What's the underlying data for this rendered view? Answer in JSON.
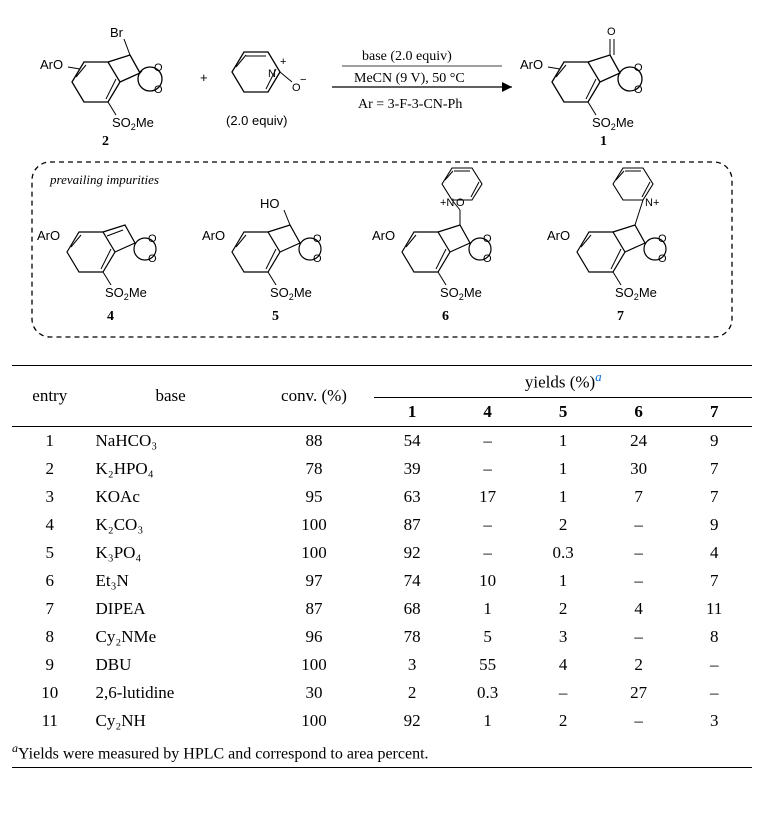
{
  "scheme": {
    "reaction": {
      "reactant_label": "2",
      "reactant_desc_aro": "ArO",
      "reactant_desc_so2me": "SO₂Me",
      "reactant_desc_br": "Br",
      "pyridine_equiv": "(2.0 equiv)",
      "arrow_line1": "base (2.0 equiv)",
      "arrow_line2": "MeCN (9 V), 50 °C",
      "arrow_line3": "Ar = 3-F-3-CN-Ph",
      "product_label": "1"
    },
    "impurities_header": "prevailing impurities",
    "impurity_labels": [
      "4",
      "5",
      "6",
      "7"
    ],
    "colors": {
      "line": "#000000",
      "text": "#000000",
      "bg": "#ffffff"
    },
    "font": {
      "label_size": 13,
      "bold_size": 14
    }
  },
  "table": {
    "yields_header": "yields (%)",
    "yields_sup": "a",
    "columns": [
      "entry",
      "base",
      "conv. (%)",
      "1",
      "4",
      "5",
      "6",
      "7"
    ],
    "rows": [
      [
        "1",
        "NaHCO₃",
        "88",
        "54",
        "–",
        "1",
        "24",
        "9"
      ],
      [
        "2",
        "K₂HPO₄",
        "78",
        "39",
        "–",
        "1",
        "30",
        "7"
      ],
      [
        "3",
        "KOAc",
        "95",
        "63",
        "17",
        "1",
        "7",
        "7"
      ],
      [
        "4",
        "K₂CO₃",
        "100",
        "87",
        "–",
        "2",
        "–",
        "9"
      ],
      [
        "5",
        "K₃PO₄",
        "100",
        "92",
        "–",
        "0.3",
        "–",
        "4"
      ],
      [
        "6",
        "Et₃N",
        "97",
        "74",
        "10",
        "1",
        "–",
        "7"
      ],
      [
        "7",
        "DIPEA",
        "87",
        "68",
        "1",
        "2",
        "4",
        "11"
      ],
      [
        "8",
        "Cy₂NMe",
        "96",
        "78",
        "5",
        "3",
        "–",
        "8"
      ],
      [
        "9",
        "DBU",
        "100",
        "3",
        "55",
        "4",
        "2",
        "–"
      ],
      [
        "10",
        "2,6-lutidine",
        "30",
        "2",
        "0.3",
        "–",
        "27",
        "–"
      ],
      [
        "11",
        "Cy₂NH",
        "100",
        "92",
        "1",
        "2",
        "–",
        "3"
      ]
    ],
    "col_widths": [
      "10%",
      "22%",
      "16%",
      "10%",
      "10%",
      "10%",
      "10%",
      "10%"
    ],
    "footnote_sup": "a",
    "footnote_text": "Yields were measured by HPLC and correspond to area percent."
  }
}
